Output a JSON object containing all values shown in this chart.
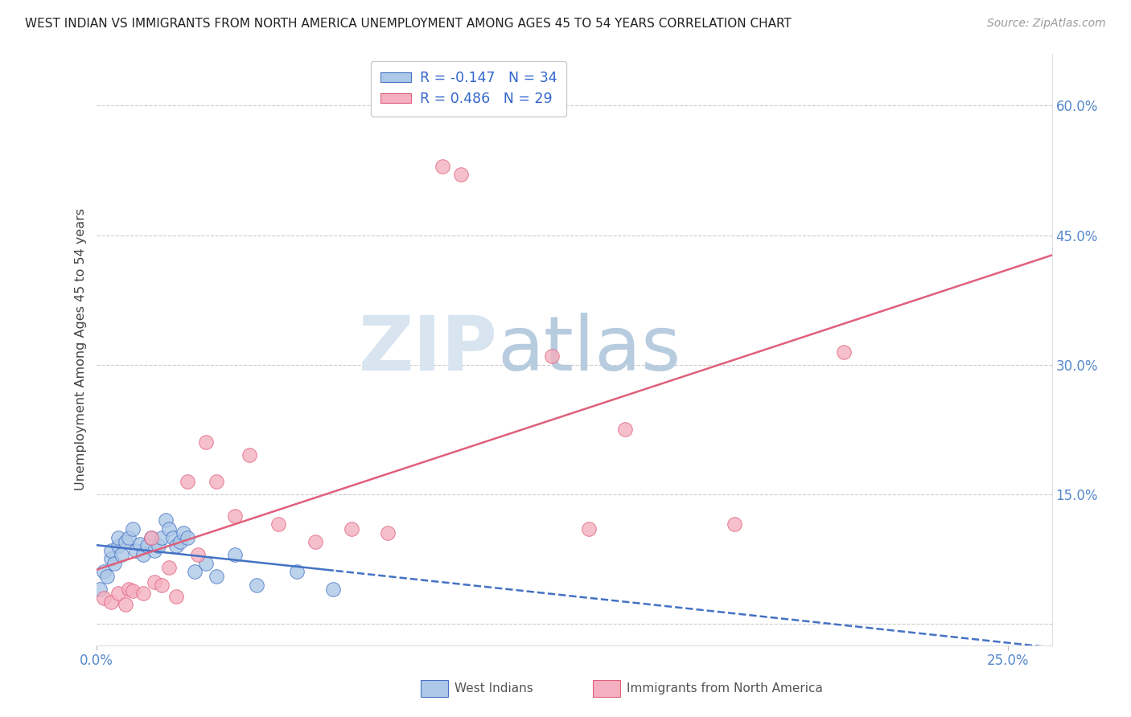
{
  "title": "WEST INDIAN VS IMMIGRANTS FROM NORTH AMERICA UNEMPLOYMENT AMONG AGES 45 TO 54 YEARS CORRELATION CHART",
  "source": "Source: ZipAtlas.com",
  "ylabel": "Unemployment Among Ages 45 to 54 years",
  "xlim": [
    0.0,
    0.262
  ],
  "ylim": [
    -0.025,
    0.66
  ],
  "series1_label": "West Indians",
  "series1_R": "-0.147",
  "series1_N": "34",
  "series1_color": "#adc8e8",
  "series1_line_color": "#4472c4",
  "series2_label": "Immigrants from North America",
  "series2_R": "0.486",
  "series2_N": "29",
  "series2_color": "#f4afc0",
  "series2_line_color": "#e0607a",
  "background_color": "#ffffff",
  "grid_color": "#cccccc",
  "title_color": "#222222",
  "axis_label_color": "#5588cc",
  "watermark_zip_color": "#d8e4f0",
  "watermark_atlas_color": "#b8ccdf",
  "west_indians_x": [
    0.001,
    0.002,
    0.003,
    0.004,
    0.004,
    0.005,
    0.006,
    0.006,
    0.007,
    0.008,
    0.009,
    0.01,
    0.011,
    0.012,
    0.013,
    0.014,
    0.015,
    0.016,
    0.017,
    0.018,
    0.019,
    0.02,
    0.021,
    0.022,
    0.023,
    0.024,
    0.025,
    0.027,
    0.03,
    0.033,
    0.038,
    0.044,
    0.055,
    0.065
  ],
  "west_indians_y": [
    0.04,
    0.06,
    0.055,
    0.075,
    0.085,
    0.07,
    0.09,
    0.1,
    0.08,
    0.095,
    0.1,
    0.11,
    0.085,
    0.092,
    0.08,
    0.09,
    0.1,
    0.085,
    0.09,
    0.1,
    0.12,
    0.11,
    0.1,
    0.09,
    0.095,
    0.105,
    0.1,
    0.06,
    0.07,
    0.055,
    0.08,
    0.045,
    0.06,
    0.04
  ],
  "immigrants_x": [
    0.002,
    0.004,
    0.006,
    0.008,
    0.009,
    0.01,
    0.013,
    0.015,
    0.016,
    0.018,
    0.02,
    0.022,
    0.025,
    0.028,
    0.03,
    0.033,
    0.038,
    0.042,
    0.05,
    0.06,
    0.07,
    0.08,
    0.095,
    0.1,
    0.125,
    0.135,
    0.145,
    0.175,
    0.205
  ],
  "immigrants_y": [
    0.03,
    0.025,
    0.035,
    0.022,
    0.04,
    0.038,
    0.035,
    0.1,
    0.048,
    0.045,
    0.065,
    0.032,
    0.165,
    0.08,
    0.21,
    0.165,
    0.125,
    0.195,
    0.115,
    0.095,
    0.11,
    0.105,
    0.53,
    0.52,
    0.31,
    0.11,
    0.225,
    0.115,
    0.315
  ],
  "y_ticks": [
    0.0,
    0.15,
    0.3,
    0.45,
    0.6
  ],
  "y_tick_labels": [
    "",
    "15.0%",
    "30.0%",
    "45.0%",
    "60.0%"
  ]
}
